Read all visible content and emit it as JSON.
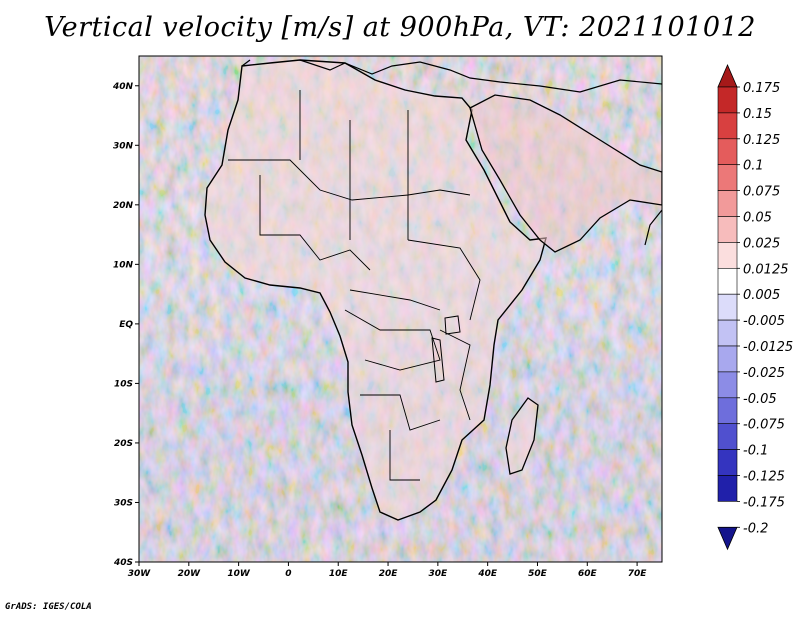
{
  "title": "Vertical velocity [m/s] at 900hPa, VT: 2021101012",
  "footer": "GrADS: IGES/COLA",
  "map": {
    "lat_range": [
      -40,
      45
    ],
    "lon_range": [
      -30,
      75
    ],
    "lat_ticks": [
      "40N",
      "30N",
      "20N",
      "10N",
      "EQ",
      "10S",
      "20S",
      "30S",
      "40S"
    ],
    "lon_ticks": [
      "30W",
      "20W",
      "10W",
      "0",
      "10E",
      "20E",
      "30E",
      "40E",
      "50E",
      "60E",
      "70E"
    ]
  },
  "colorbar": {
    "labels": [
      "0.175",
      "0.15",
      "0.125",
      "0.1",
      "0.075",
      "0.05",
      "0.025",
      "0.0125",
      "0.005",
      "-0.005",
      "-0.0125",
      "-0.025",
      "-0.05",
      "-0.075",
      "-0.1",
      "-0.125",
      "-0.175",
      "-0.2"
    ],
    "colors": [
      "#a51919",
      "#c42828",
      "#d84040",
      "#e45c5c",
      "#ec7878",
      "#f29a9a",
      "#f7bcbc",
      "#fbdede",
      "#ffffff",
      "#dcdcfa",
      "#c2c2f4",
      "#a8a8ee",
      "#8c8ce6",
      "#6e6edc",
      "#5050cf",
      "#3434bf",
      "#2020aa",
      "#14148c"
    ]
  }
}
